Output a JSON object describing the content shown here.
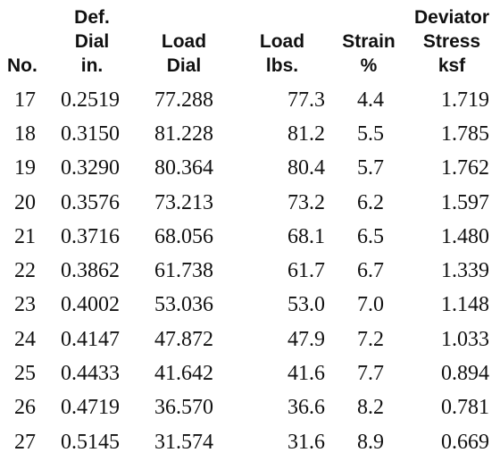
{
  "table": {
    "headers": [
      [
        "No."
      ],
      [
        "Def.",
        "Dial",
        "in."
      ],
      [
        "Load",
        "Dial"
      ],
      [
        "Load",
        "lbs."
      ],
      [
        "Strain",
        "%"
      ],
      [
        "Deviator",
        "Stress",
        "ksf"
      ]
    ],
    "rows": [
      [
        "17",
        "0.2519",
        "77.288",
        "77.3",
        "4.4",
        "1.719"
      ],
      [
        "18",
        "0.3150",
        "81.228",
        "81.2",
        "5.5",
        "1.785"
      ],
      [
        "19",
        "0.3290",
        "80.364",
        "80.4",
        "5.7",
        "1.762"
      ],
      [
        "20",
        "0.3576",
        "73.213",
        "73.2",
        "6.2",
        "1.597"
      ],
      [
        "21",
        "0.3716",
        "68.056",
        "68.1",
        "6.5",
        "1.480"
      ],
      [
        "22",
        "0.3862",
        "61.738",
        "61.7",
        "6.7",
        "1.339"
      ],
      [
        "23",
        "0.4002",
        "53.036",
        "53.0",
        "7.0",
        "1.148"
      ],
      [
        "24",
        "0.4147",
        "47.872",
        "47.9",
        "7.2",
        "1.033"
      ],
      [
        "25",
        "0.4433",
        "41.642",
        "41.6",
        "7.7",
        "0.894"
      ],
      [
        "26",
        "0.4719",
        "36.570",
        "36.6",
        "8.2",
        "0.781"
      ],
      [
        "27",
        "0.5145",
        "31.574",
        "31.6",
        "8.9",
        "0.669"
      ]
    ]
  }
}
